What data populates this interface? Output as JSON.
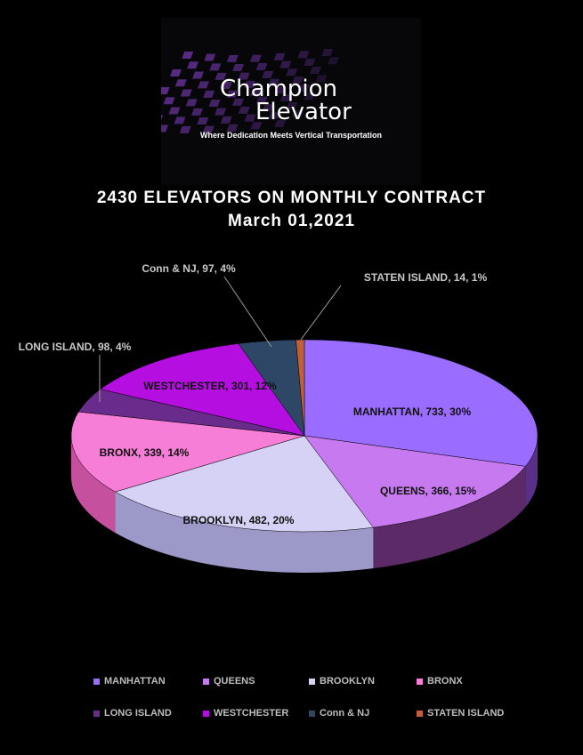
{
  "logo": {
    "line1": "Champion",
    "line2": "Elevator",
    "tagline": "Where Dedication Meets Vertical Transportation"
  },
  "chart_data": {
    "type": "pie",
    "title": "2430 ELEVATORS ON MONTHLY CONTRACT",
    "subtitle": "March 01,2021",
    "total": 2430,
    "legend_position": "bottom",
    "slices": [
      {
        "label": "MANHATTAN",
        "value": 733,
        "percent": 30,
        "color": "#9a6cff",
        "side": "#5a2f8a",
        "text": "MANHATTAN, 733, 30%"
      },
      {
        "label": "QUEENS",
        "value": 366,
        "percent": 15,
        "color": "#c77af0",
        "side": "#5c2a66",
        "text": "QUEENS, 366, 15%"
      },
      {
        "label": "BROOKLYN",
        "value": 482,
        "percent": 20,
        "color": "#d6d2f6",
        "side": "#9c98c8",
        "text": "BROOKLYN, 482, 20%"
      },
      {
        "label": "BRONX",
        "value": 339,
        "percent": 14,
        "color": "#f77ed6",
        "side": "#c4509e",
        "text": "BRONX, 339, 14%"
      },
      {
        "label": "LONG ISLAND",
        "value": 98,
        "percent": 4,
        "color": "#6a2c8c",
        "side": "#40185a",
        "text": "LONG ISLAND, 98, 4%"
      },
      {
        "label": "WESTCHESTER",
        "value": 301,
        "percent": 12,
        "color": "#b40ee0",
        "side": "#6c0686",
        "text": "WESTCHESTER, 301, 12%"
      },
      {
        "label": "Conn & NJ",
        "value": 97,
        "percent": 4,
        "color": "#2e4766",
        "side": "#1c2c40",
        "text": "Conn & NJ, 97, 4%"
      },
      {
        "label": "STATEN ISLAND",
        "value": 14,
        "percent": 1,
        "color": "#c0603a",
        "side": "#7a3a22",
        "text": "STATEN ISLAND, 14, 1%"
      }
    ]
  }
}
